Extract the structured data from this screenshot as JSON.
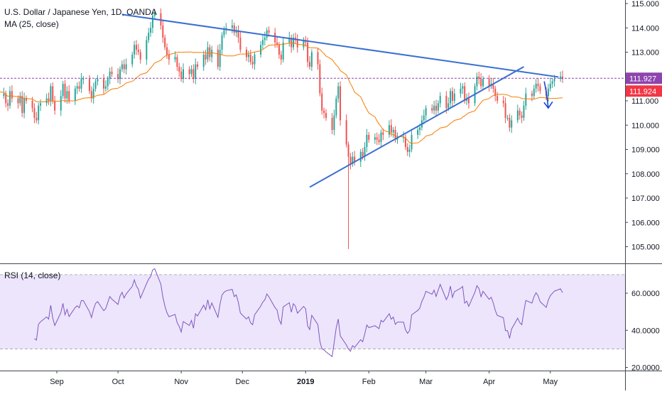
{
  "chart_data": [
    {
      "type": "candlestick",
      "title": "U.S. Dollar / Japanese Yen, 1D, OANDA",
      "indicator_label": "MA (25, close)",
      "y_ticks": [
        "115.000",
        "114.000",
        "113.000",
        "112.000",
        "111.000",
        "110.000",
        "109.000",
        "108.000",
        "107.000",
        "106.000",
        "105.000"
      ],
      "ylim": [
        104.5,
        115.1
      ],
      "x_ticks": [
        {
          "label": "Sep",
          "date": "2018-09-01"
        },
        {
          "label": "Oct",
          "date": "2018-10-01"
        },
        {
          "label": "Nov",
          "date": "2018-11-01"
        },
        {
          "label": "Dec",
          "date": "2018-12-01"
        },
        {
          "label": "2019",
          "date": "2019-01-01"
        },
        {
          "label": "Feb",
          "date": "2019-02-01"
        },
        {
          "label": "Mar",
          "date": "2019-03-01"
        },
        {
          "label": "Apr",
          "date": "2019-04-01"
        },
        {
          "label": "May",
          "date": "2019-05-01"
        }
      ],
      "last_price": "111.927",
      "last_price_color": "#8e44ad",
      "current_price": "111.924",
      "current_price_color": "#f23645",
      "up_color": "#26a69a",
      "down_color": "#ef5350",
      "ma_color": "#f57c00",
      "trendline_color": "#3a6fd1",
      "arrow_color": "#1a45d8",
      "trendlines": [
        {
          "name": "upper",
          "from": {
            "date": "2018-10-03",
            "value": 114.55
          },
          "to": {
            "date": "2019-05-05",
            "value": 111.98
          }
        },
        {
          "name": "lower",
          "from": {
            "date": "2019-01-03",
            "value": 107.45
          },
          "to": {
            "date": "2019-04-18",
            "value": 112.4
          }
        }
      ],
      "arrow": {
        "from": {
          "date": "2019-04-28",
          "value": 111.8
        },
        "to": {
          "date": "2019-04-30",
          "value": 110.7
        }
      },
      "close_series": {
        "start": "2018-08-01",
        "values": [
          111.6,
          111.3,
          111.2,
          111.3,
          110.9,
          110.8,
          111.4,
          111.1,
          110.9,
          111.2,
          110.5,
          111.1,
          111.0,
          110.7,
          110.3,
          110.2,
          110.8,
          110.9,
          111.1,
          111.0,
          111.6,
          111.0,
          110.6,
          111.2,
          111.7,
          111.1,
          111.4,
          111.0,
          111.5,
          111.6,
          111.5,
          111.9,
          111.9,
          111.4,
          111.1,
          111.5,
          111.8,
          111.9,
          111.5,
          111.6,
          111.9,
          112.2,
          112.1,
          111.9,
          112.3,
          112.5,
          112.3,
          112.5,
          112.9,
          113.3,
          113.1,
          113.0,
          112.7,
          113.5,
          113.8,
          114.0,
          114.5,
          114.6,
          114.1,
          113.6,
          113.2,
          112.9,
          112.7,
          112.8,
          112.4,
          112.2,
          111.9,
          112.3,
          112.1,
          112.3,
          111.9,
          112.5,
          112.4,
          112.9,
          112.7,
          113.2,
          112.8,
          113.1,
          112.4,
          113.1,
          113.7,
          113.9,
          114.0,
          114.1,
          113.8,
          113.9,
          113.6,
          113.1,
          112.8,
          112.9,
          112.6,
          112.5,
          112.9,
          113.3,
          113.5,
          113.6,
          113.9,
          113.8,
          113.4,
          113.3,
          112.9,
          112.7,
          113.4,
          113.6,
          113.2,
          113.6,
          113.5,
          113.2,
          113.5,
          113.4,
          112.6,
          112.4,
          113.0,
          112.5,
          111.3,
          110.6,
          110.5,
          110.3,
          109.8,
          110.4,
          111.1,
          111.6,
          110.2,
          109.2,
          108.7,
          108.4,
          108.7,
          108.5,
          108.9,
          108.7,
          109.1,
          109.6,
          109.4,
          109.5,
          109.4,
          109.3,
          109.7,
          109.6,
          110.0,
          109.7,
          109.8,
          109.4,
          109.5,
          109.5,
          109.1,
          108.9,
          109.0,
          109.6,
          109.8,
          109.9,
          110.2,
          110.4,
          110.7,
          110.6,
          110.8,
          110.6,
          110.9,
          111.2,
          110.7,
          110.9,
          111.4,
          111.0,
          111.3,
          111.5,
          111.6,
          111.0,
          111.1,
          110.9,
          111.6,
          112.0,
          111.9,
          111.6,
          111.9,
          111.6,
          111.7,
          111.5,
          111.2,
          111.0,
          110.9,
          110.3,
          110.3,
          109.9,
          110.2,
          110.6,
          110.4,
          110.3,
          110.8,
          111.3,
          111.2,
          111.5,
          111.7,
          111.6,
          111.4,
          111.2,
          111.5,
          111.7,
          111.8,
          111.9,
          112.0,
          111.9
        ]
      }
    },
    {
      "type": "line",
      "indicator_label": "RSI (14, close)",
      "y_ticks": [
        "60.0000",
        "40.0000",
        "20.0000"
      ],
      "ylim": [
        18,
        78
      ],
      "band": [
        30,
        70
      ],
      "line_color": "#7e57c2",
      "band_color": "#ede5fb"
    }
  ]
}
